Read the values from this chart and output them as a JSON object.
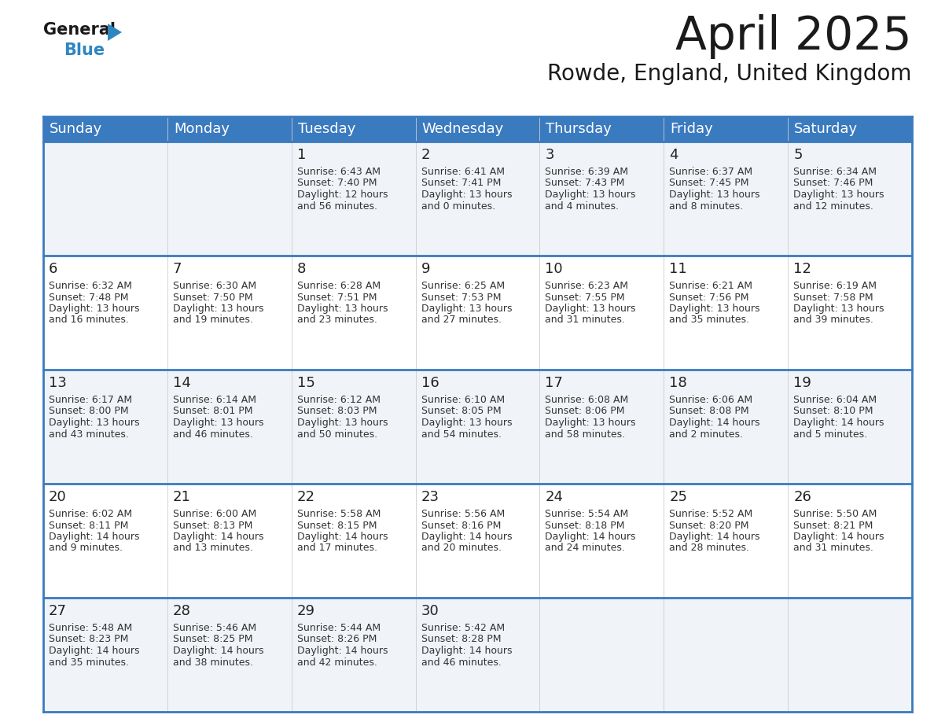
{
  "title": "April 2025",
  "subtitle": "Rowde, England, United Kingdom",
  "header_bg_color": "#3a7abf",
  "header_text_color": "#ffffff",
  "cell_bg_color_light": "#f0f4f8",
  "cell_bg_color_white": "#ffffff",
  "cell_border_color": "#3a7abf",
  "day_number_color": "#222222",
  "cell_text_color": "#333333",
  "days_of_week": [
    "Sunday",
    "Monday",
    "Tuesday",
    "Wednesday",
    "Thursday",
    "Friday",
    "Saturday"
  ],
  "weeks": [
    [
      {
        "day": "",
        "sunrise": "",
        "sunset": "",
        "daylight_h": "",
        "daylight_m": ""
      },
      {
        "day": "",
        "sunrise": "",
        "sunset": "",
        "daylight_h": "",
        "daylight_m": ""
      },
      {
        "day": "1",
        "sunrise": "6:43 AM",
        "sunset": "7:40 PM",
        "daylight_h": "12 hours",
        "daylight_m": "and 56 minutes."
      },
      {
        "day": "2",
        "sunrise": "6:41 AM",
        "sunset": "7:41 PM",
        "daylight_h": "13 hours",
        "daylight_m": "and 0 minutes."
      },
      {
        "day": "3",
        "sunrise": "6:39 AM",
        "sunset": "7:43 PM",
        "daylight_h": "13 hours",
        "daylight_m": "and 4 minutes."
      },
      {
        "day": "4",
        "sunrise": "6:37 AM",
        "sunset": "7:45 PM",
        "daylight_h": "13 hours",
        "daylight_m": "and 8 minutes."
      },
      {
        "day": "5",
        "sunrise": "6:34 AM",
        "sunset": "7:46 PM",
        "daylight_h": "13 hours",
        "daylight_m": "and 12 minutes."
      }
    ],
    [
      {
        "day": "6",
        "sunrise": "6:32 AM",
        "sunset": "7:48 PM",
        "daylight_h": "13 hours",
        "daylight_m": "and 16 minutes."
      },
      {
        "day": "7",
        "sunrise": "6:30 AM",
        "sunset": "7:50 PM",
        "daylight_h": "13 hours",
        "daylight_m": "and 19 minutes."
      },
      {
        "day": "8",
        "sunrise": "6:28 AM",
        "sunset": "7:51 PM",
        "daylight_h": "13 hours",
        "daylight_m": "and 23 minutes."
      },
      {
        "day": "9",
        "sunrise": "6:25 AM",
        "sunset": "7:53 PM",
        "daylight_h": "13 hours",
        "daylight_m": "and 27 minutes."
      },
      {
        "day": "10",
        "sunrise": "6:23 AM",
        "sunset": "7:55 PM",
        "daylight_h": "13 hours",
        "daylight_m": "and 31 minutes."
      },
      {
        "day": "11",
        "sunrise": "6:21 AM",
        "sunset": "7:56 PM",
        "daylight_h": "13 hours",
        "daylight_m": "and 35 minutes."
      },
      {
        "day": "12",
        "sunrise": "6:19 AM",
        "sunset": "7:58 PM",
        "daylight_h": "13 hours",
        "daylight_m": "and 39 minutes."
      }
    ],
    [
      {
        "day": "13",
        "sunrise": "6:17 AM",
        "sunset": "8:00 PM",
        "daylight_h": "13 hours",
        "daylight_m": "and 43 minutes."
      },
      {
        "day": "14",
        "sunrise": "6:14 AM",
        "sunset": "8:01 PM",
        "daylight_h": "13 hours",
        "daylight_m": "and 46 minutes."
      },
      {
        "day": "15",
        "sunrise": "6:12 AM",
        "sunset": "8:03 PM",
        "daylight_h": "13 hours",
        "daylight_m": "and 50 minutes."
      },
      {
        "day": "16",
        "sunrise": "6:10 AM",
        "sunset": "8:05 PM",
        "daylight_h": "13 hours",
        "daylight_m": "and 54 minutes."
      },
      {
        "day": "17",
        "sunrise": "6:08 AM",
        "sunset": "8:06 PM",
        "daylight_h": "13 hours",
        "daylight_m": "and 58 minutes."
      },
      {
        "day": "18",
        "sunrise": "6:06 AM",
        "sunset": "8:08 PM",
        "daylight_h": "14 hours",
        "daylight_m": "and 2 minutes."
      },
      {
        "day": "19",
        "sunrise": "6:04 AM",
        "sunset": "8:10 PM",
        "daylight_h": "14 hours",
        "daylight_m": "and 5 minutes."
      }
    ],
    [
      {
        "day": "20",
        "sunrise": "6:02 AM",
        "sunset": "8:11 PM",
        "daylight_h": "14 hours",
        "daylight_m": "and 9 minutes."
      },
      {
        "day": "21",
        "sunrise": "6:00 AM",
        "sunset": "8:13 PM",
        "daylight_h": "14 hours",
        "daylight_m": "and 13 minutes."
      },
      {
        "day": "22",
        "sunrise": "5:58 AM",
        "sunset": "8:15 PM",
        "daylight_h": "14 hours",
        "daylight_m": "and 17 minutes."
      },
      {
        "day": "23",
        "sunrise": "5:56 AM",
        "sunset": "8:16 PM",
        "daylight_h": "14 hours",
        "daylight_m": "and 20 minutes."
      },
      {
        "day": "24",
        "sunrise": "5:54 AM",
        "sunset": "8:18 PM",
        "daylight_h": "14 hours",
        "daylight_m": "and 24 minutes."
      },
      {
        "day": "25",
        "sunrise": "5:52 AM",
        "sunset": "8:20 PM",
        "daylight_h": "14 hours",
        "daylight_m": "and 28 minutes."
      },
      {
        "day": "26",
        "sunrise": "5:50 AM",
        "sunset": "8:21 PM",
        "daylight_h": "14 hours",
        "daylight_m": "and 31 minutes."
      }
    ],
    [
      {
        "day": "27",
        "sunrise": "5:48 AM",
        "sunset": "8:23 PM",
        "daylight_h": "14 hours",
        "daylight_m": "and 35 minutes."
      },
      {
        "day": "28",
        "sunrise": "5:46 AM",
        "sunset": "8:25 PM",
        "daylight_h": "14 hours",
        "daylight_m": "and 38 minutes."
      },
      {
        "day": "29",
        "sunrise": "5:44 AM",
        "sunset": "8:26 PM",
        "daylight_h": "14 hours",
        "daylight_m": "and 42 minutes."
      },
      {
        "day": "30",
        "sunrise": "5:42 AM",
        "sunset": "8:28 PM",
        "daylight_h": "14 hours",
        "daylight_m": "and 46 minutes."
      },
      {
        "day": "",
        "sunrise": "",
        "sunset": "",
        "daylight_h": "",
        "daylight_m": ""
      },
      {
        "day": "",
        "sunrise": "",
        "sunset": "",
        "daylight_h": "",
        "daylight_m": ""
      },
      {
        "day": "",
        "sunrise": "",
        "sunset": "",
        "daylight_h": "",
        "daylight_m": ""
      }
    ]
  ],
  "logo_color_general": "#1a1a1a",
  "logo_color_blue": "#2e86c1",
  "logo_triangle_color": "#2e86c1",
  "title_color": "#1a1a1a",
  "subtitle_color": "#1a1a1a",
  "title_fontsize": 42,
  "subtitle_fontsize": 20,
  "header_fontsize": 13,
  "day_num_fontsize": 13,
  "cell_text_fontsize": 9,
  "logo_fontsize_general": 15,
  "logo_fontsize_blue": 15
}
